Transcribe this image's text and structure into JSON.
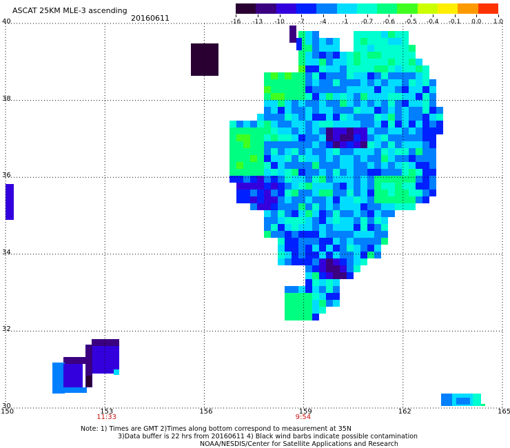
{
  "title": "ASCAT 25KM MLE-3 ascending",
  "date": "20160611",
  "colorbar": {
    "labels": [
      "-16",
      "-13",
      "-10",
      "-7",
      "-4",
      "-1",
      "-0.7",
      "-0.6",
      "-0.5",
      "-0.4",
      "-0.1",
      "0.0",
      "1.0"
    ],
    "colors": [
      "#2a0033",
      "#3a0080",
      "#3300dd",
      "#0020ff",
      "#0080ff",
      "#00ddff",
      "#00ffd0",
      "#00ff80",
      "#40ff20",
      "#ccff00",
      "#ffee00",
      "#ff9900",
      "#ff3300"
    ]
  },
  "axes": {
    "lon_ticks": [
      "150",
      "153",
      "156",
      "159",
      "162",
      "165"
    ],
    "lat_ticks": [
      "40",
      "38",
      "36",
      "34",
      "32",
      "30"
    ],
    "lon_range": [
      150,
      165
    ],
    "lat_range": [
      30,
      40
    ],
    "grid": "dotted",
    "times": [
      {
        "lon": 153,
        "label": "11:33"
      },
      {
        "lon": 159,
        "label": "9:54"
      }
    ]
  },
  "notes": [
    "Note: 1) Times are GMT 2)Times along bottom correspond to measurement at 35N",
    "3)Data buffer is 22 hrs from 20160611 4) Black wind barbs indicate possible contamination",
    "NOAA/NESDIS/Center for Satellite Applications and Research"
  ],
  "map_data": {
    "variable": "MLE",
    "swaths": [
      {
        "region": "main swath",
        "lon": [
          156.8,
          163.5
        ],
        "lat": [
          32.5,
          39.9
        ],
        "dominant_colors": [
          "#00ffd0",
          "#00ddff",
          "#0080ff",
          "#40ff20",
          "#0020ff"
        ]
      },
      {
        "region": "dark block",
        "lon": [
          155.7,
          156.5
        ],
        "lat": [
          38.9,
          39.6
        ],
        "color": "#2a0033"
      },
      {
        "region": "west edge strip",
        "lon": [
          150.0,
          150.2
        ],
        "lat": [
          34.9,
          36.0
        ],
        "color": "#3300dd"
      },
      {
        "region": "southwest patch",
        "lon": [
          151.6,
          153.2
        ],
        "lat": [
          30.3,
          31.7
        ],
        "dominant_colors": [
          "#3300dd",
          "#3a0080",
          "#0080ff",
          "#2a0033"
        ]
      },
      {
        "region": "southeast patch",
        "lon": [
          163.0,
          163.9
        ],
        "lat": [
          30.0,
          30.3
        ],
        "dominant_colors": [
          "#00ddff",
          "#0080ff",
          "#00ffd0"
        ]
      }
    ]
  }
}
